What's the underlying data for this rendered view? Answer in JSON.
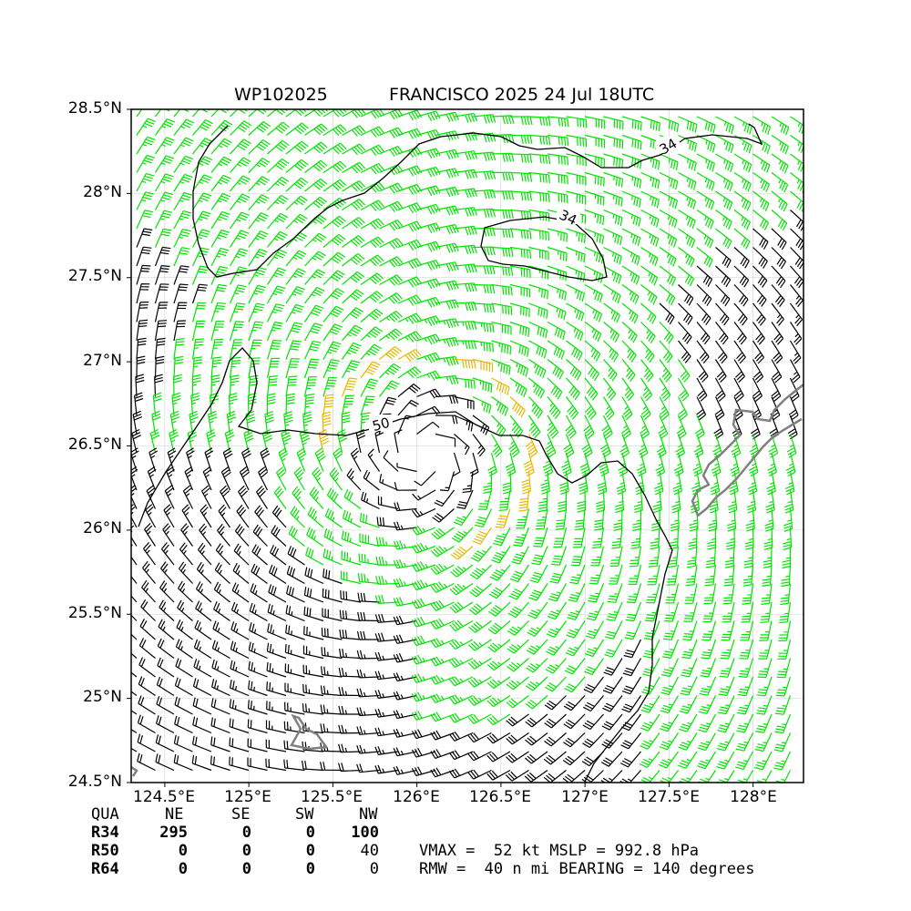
{
  "title": {
    "storm_id": "WP102025",
    "description": "FRANCISCO 2025 24 Jul 18UTC"
  },
  "axes": {
    "lat_ticks": [
      "28.5°N",
      "28°N",
      "27.5°N",
      "27°N",
      "26.5°N",
      "26°N",
      "25.5°N",
      "25°N",
      "24.5°N"
    ],
    "lon_ticks": [
      "124.5°E",
      "125°E",
      "125.5°E",
      "126°E",
      "126.5°E",
      "127°E",
      "127.5°E",
      "128°E"
    ],
    "lat_range": [
      24.5,
      28.5
    ],
    "lon_range": [
      124.3,
      128.3
    ]
  },
  "map": {
    "contour_labels": [
      "34",
      "34",
      "50"
    ],
    "colors": {
      "below_34kt": "#000000",
      "34_to_50kt": "#00e400",
      "above_50kt": "#e6b800",
      "land": "#808080"
    },
    "storm_center": {
      "lon": 126.05,
      "lat": 26.45
    },
    "rmw_nmi": 40
  },
  "wind_radii": {
    "headers": [
      "QUA",
      "NE",
      "SE",
      "SW",
      "NW"
    ],
    "rows": [
      [
        "R34",
        "295",
        "0",
        "0",
        "100"
      ],
      [
        "R50",
        "0",
        "0",
        "0",
        "40"
      ],
      [
        "R64",
        "0",
        "0",
        "0",
        "0"
      ]
    ]
  },
  "summary": {
    "line1": "VMAX =  52 kt MSLP = 992.8 hPa",
    "line2": "RMW =  40 n mi BEARING = 140 degrees"
  }
}
